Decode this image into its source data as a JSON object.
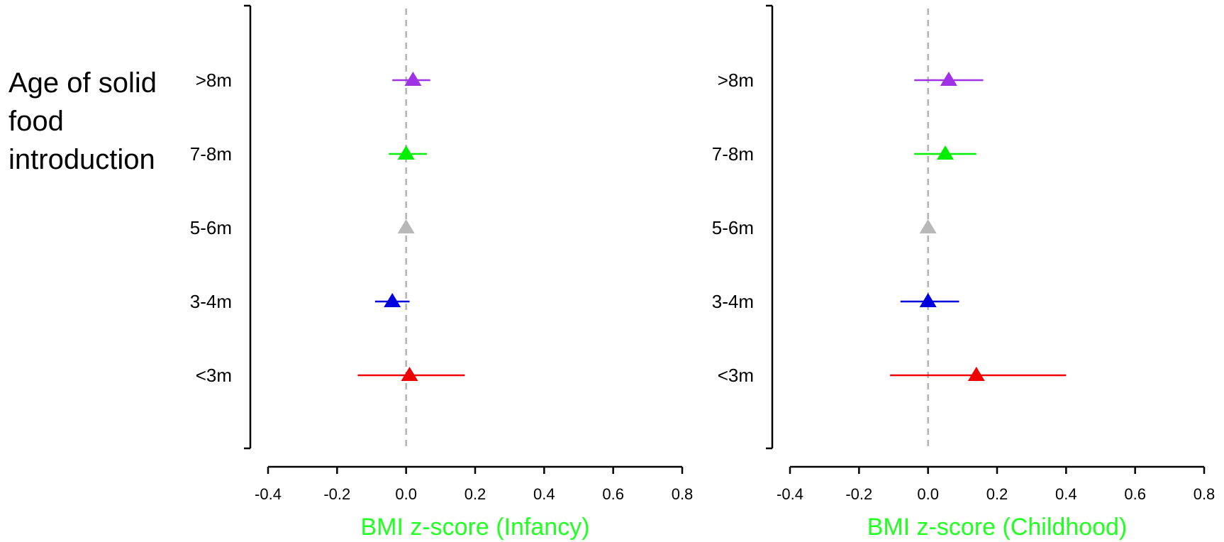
{
  "side_label": {
    "lines": [
      "Age of solid",
      "food",
      "introduction"
    ]
  },
  "chart_data": [
    {
      "type": "scatter",
      "subtype": "forest-plot",
      "title": "",
      "xlabel": "BMI z-score (Infancy)",
      "xlabel_color": "#22ff22",
      "xlim": [
        -0.4,
        0.8
      ],
      "xticks": [
        -0.4,
        -0.2,
        0.0,
        0.2,
        0.4,
        0.6,
        0.8
      ],
      "xtick_labels": [
        "-0.4",
        "-0.2",
        "0.0",
        "0.2",
        "0.4",
        "0.6",
        "0.8"
      ],
      "reference_line": 0.0,
      "categories": [
        ">8m",
        "7-8m",
        "5-6m",
        "3-4m",
        "<3m"
      ],
      "points": [
        {
          "category": ">8m",
          "estimate": 0.02,
          "lower": -0.04,
          "upper": 0.07,
          "color": "#a032e6"
        },
        {
          "category": "7-8m",
          "estimate": 0.0,
          "lower": -0.05,
          "upper": 0.06,
          "color": "#00ee00"
        },
        {
          "category": "5-6m",
          "estimate": 0.0,
          "lower": 0.0,
          "upper": 0.0,
          "color": "#b8b8b8"
        },
        {
          "category": "3-4m",
          "estimate": -0.04,
          "lower": -0.09,
          "upper": 0.01,
          "color": "#0000dd"
        },
        {
          "category": "<3m",
          "estimate": 0.01,
          "lower": -0.14,
          "upper": 0.17,
          "color": "#ee0000"
        }
      ],
      "grid": false
    },
    {
      "type": "scatter",
      "subtype": "forest-plot",
      "title": "",
      "xlabel": "BMI z-score (Childhood)",
      "xlabel_color": "#22ff22",
      "xlim": [
        -0.4,
        0.8
      ],
      "xticks": [
        -0.4,
        -0.2,
        0.0,
        0.2,
        0.4,
        0.6,
        0.8
      ],
      "xtick_labels": [
        "-0.4",
        "-0.2",
        "0.0",
        "0.2",
        "0.4",
        "0.6",
        "0.8"
      ],
      "reference_line": 0.0,
      "categories": [
        ">8m",
        "7-8m",
        "5-6m",
        "3-4m",
        "<3m"
      ],
      "points": [
        {
          "category": ">8m",
          "estimate": 0.06,
          "lower": -0.04,
          "upper": 0.16,
          "color": "#a032e6"
        },
        {
          "category": "7-8m",
          "estimate": 0.05,
          "lower": -0.04,
          "upper": 0.14,
          "color": "#00ee00"
        },
        {
          "category": "5-6m",
          "estimate": 0.0,
          "lower": 0.0,
          "upper": 0.0,
          "color": "#b8b8b8"
        },
        {
          "category": "3-4m",
          "estimate": 0.0,
          "lower": -0.08,
          "upper": 0.09,
          "color": "#0000dd"
        },
        {
          "category": "<3m",
          "estimate": 0.14,
          "lower": -0.11,
          "upper": 0.4,
          "color": "#ee0000"
        }
      ],
      "grid": false
    }
  ]
}
